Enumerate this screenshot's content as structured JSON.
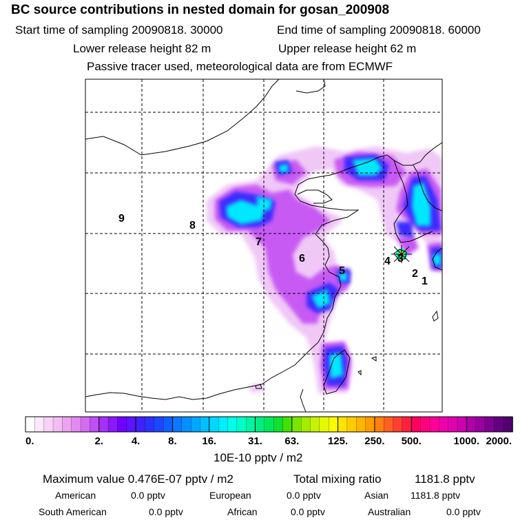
{
  "header": {
    "title": "BC  source contributions in nested domain for gosan_200908",
    "start_label": "Start time of sampling 20090818. 30000",
    "end_label": "End time of sampling 20090818. 60000",
    "lower_label": "Lower release height   82 m",
    "upper_label": "Upper release height   62 m",
    "note": "Passive tracer used, meteorological data are from ECMWF"
  },
  "chart_data": {
    "type": "heatmap",
    "title": "BC  source contributions in nested domain for gosan_200908",
    "colorbar": {
      "tick_labels": [
        "0.",
        "2.",
        "4.",
        "8.",
        "16.",
        "31.",
        "63.",
        "125.",
        "250.",
        "500.",
        "1000.",
        "2000."
      ],
      "unit_label": "10E-10 pptv / m2",
      "colors": [
        "#ffffff",
        "#fbe8fb",
        "#f6d2f6",
        "#f1bdf2",
        "#eaa4f0",
        "#e38af0",
        "#d46cf2",
        "#c04ff6",
        "#a630f9",
        "#8a18fb",
        "#7000ff",
        "#5a14ff",
        "#4020ff",
        "#2a32ff",
        "#1c46ff",
        "#1060ff",
        "#0a78ff",
        "#0490ff",
        "#00a8ff",
        "#00c0ff",
        "#00d8ff",
        "#00eeff",
        "#00ffea",
        "#00ffc8",
        "#00f6a4",
        "#00ee80",
        "#00e85a",
        "#10e030",
        "#44e000",
        "#7ae600",
        "#a4ec00",
        "#c6f200",
        "#e4f800",
        "#fafa00",
        "#ffe400",
        "#ffcc00",
        "#ffb400",
        "#ff9c00",
        "#ff8010",
        "#ff6020",
        "#ff4030",
        "#ff2040",
        "#ff0060",
        "#ff0080",
        "#ff0098",
        "#f000a8",
        "#e000b0",
        "#cc00b0",
        "#b000a8",
        "#9a00a0",
        "#7e0090",
        "#640080",
        "#500070"
      ],
      "major_divisions": [
        0,
        8,
        12,
        16,
        20,
        25,
        29,
        34,
        38,
        42,
        48,
        53
      ]
    },
    "receptor": "gosan",
    "source_labels": [
      "1",
      "2",
      "3",
      "4",
      "5",
      "6",
      "7",
      "8",
      "9"
    ]
  },
  "footer": {
    "max_label": "Maximum value  0.476E-07 pptv / m2",
    "total_label": "Total mixing ratio",
    "total_value": "1181.8 pptv",
    "row1": [
      {
        "name": "American",
        "value": "0.0 pptv"
      },
      {
        "name": "European",
        "value": "0.0 pptv"
      },
      {
        "name": "Asian",
        "value": "1181.8 pptv"
      }
    ],
    "row2": [
      {
        "name": "South American",
        "value": "0.0 pptv"
      },
      {
        "name": "African",
        "value": "0.0 pptv"
      },
      {
        "name": "Australian",
        "value": "0.0 pptv"
      }
    ]
  }
}
